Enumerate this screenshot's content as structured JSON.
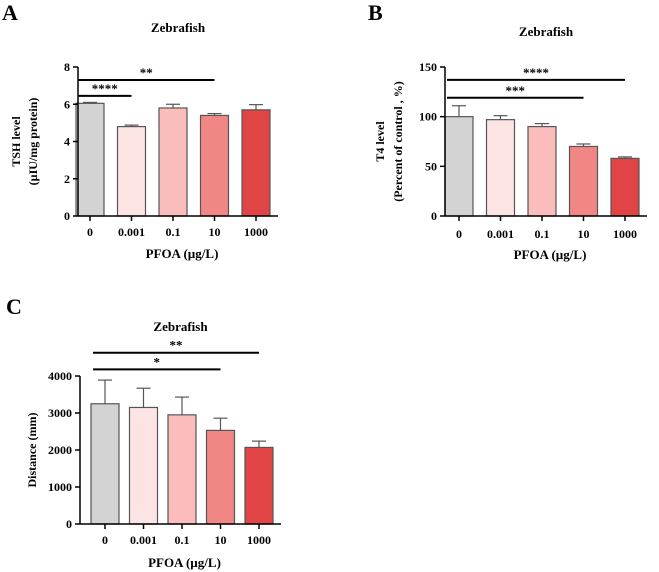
{
  "colors": {
    "bars": [
      "#d3d3d3",
      "#fde4e4",
      "#fbbcbc",
      "#f08784",
      "#e04444"
    ],
    "bar_stroke": "#555555",
    "axis": "#000000"
  },
  "chart_data": [
    {
      "panel": "A",
      "type": "bar",
      "title": "Zebrafish",
      "xlabel": "PFOA (µg/L)",
      "ylabel_lines": [
        "TSH level",
        "(µIU/mg protein)"
      ],
      "categories": [
        "0",
        "0.001",
        "0.1",
        "10",
        "1000"
      ],
      "values": [
        6.05,
        4.8,
        5.8,
        5.4,
        5.7
      ],
      "errors": [
        0.05,
        0.08,
        0.2,
        0.1,
        0.28
      ],
      "ylim": [
        0,
        8
      ],
      "yticks": [
        0,
        2,
        4,
        6,
        8
      ],
      "significance": [
        {
          "from": 0,
          "to": 1,
          "label": "****",
          "y": 6.45
        },
        {
          "from": 0,
          "to": 3,
          "label": "**",
          "y": 7.3
        }
      ]
    },
    {
      "panel": "B",
      "type": "bar",
      "title": "Zebrafish",
      "xlabel": "PFOA (µg/L)",
      "ylabel_lines": [
        "T4 level",
        "(Percent of control , %)"
      ],
      "categories": [
        "0",
        "0.001",
        "0.1",
        "10",
        "1000"
      ],
      "values": [
        100,
        97,
        90,
        70,
        58
      ],
      "errors": [
        11,
        4,
        3,
        2.5,
        1.5
      ],
      "ylim": [
        0,
        150
      ],
      "yticks": [
        0,
        50,
        100,
        150
      ],
      "significance": [
        {
          "from": 0,
          "to": 3,
          "label": "***",
          "y": 119
        },
        {
          "from": 0,
          "to": 4,
          "label": "****",
          "y": 137
        }
      ]
    },
    {
      "panel": "C",
      "type": "bar",
      "title": "Zebrafish",
      "xlabel": "PFOA (µg/L)",
      "ylabel_lines": [
        "Distance (mm)"
      ],
      "categories": [
        "0",
        "0.001",
        "0.1",
        "10",
        "1000"
      ],
      "values": [
        3250,
        3150,
        2950,
        2530,
        2070
      ],
      "errors": [
        640,
        520,
        480,
        330,
        170
      ],
      "ylim": [
        0,
        4000
      ],
      "yticks": [
        0,
        1000,
        2000,
        3000,
        4000
      ],
      "significance": [
        {
          "from": 0,
          "to": 3,
          "label": "*",
          "y": 4180
        },
        {
          "from": 0,
          "to": 4,
          "label": "**",
          "y": 4630
        }
      ]
    }
  ]
}
